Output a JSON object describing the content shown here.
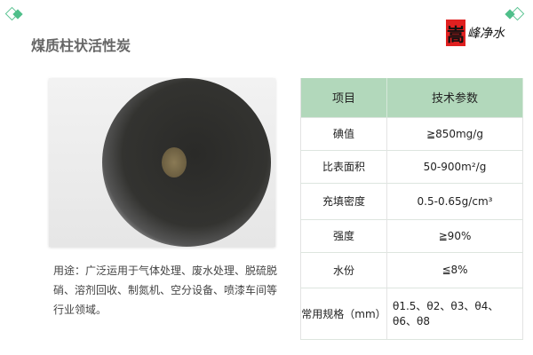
{
  "title": "煤质柱状活性炭",
  "logo": {
    "seal_char": "嵩",
    "text": "峰净水"
  },
  "usage": "用途：广泛运用于气体处理、废水处理、脱硫脱硝、溶剂回收、制氮机、空分设备、喷漆车间等行业领域。",
  "table": {
    "headers": [
      "项目",
      "技术参数"
    ],
    "rows": [
      {
        "item": "碘值",
        "value": "≧850mg/g"
      },
      {
        "item": "比表面积",
        "value": "50-900m²/g"
      },
      {
        "item": "充填密度",
        "value": "0.5-0.65g/cm³"
      },
      {
        "item": "强度",
        "value": "≧90%"
      },
      {
        "item": "水份",
        "value": "≦8%"
      },
      {
        "item": "常用规格（mm）",
        "value": "θ1.5、θ2、θ3、θ4、θ6、θ8"
      }
    ]
  },
  "colors": {
    "accent": "#4fbf8a",
    "header_bg": "#b2d8bb"
  }
}
